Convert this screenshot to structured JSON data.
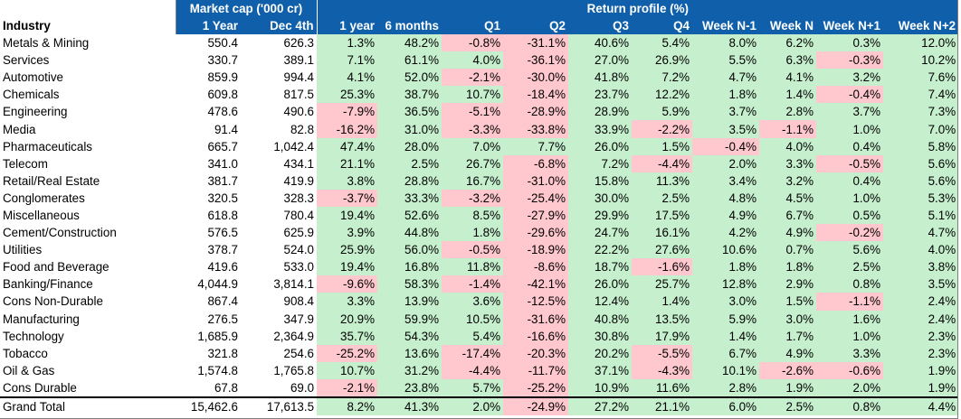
{
  "header": {
    "group_market_cap": "Market cap ('000 cr)",
    "group_return_profile": "Return profile (%)",
    "columns": [
      "Industry",
      "1 Year",
      "Dec 4th",
      "1 year",
      "6 months",
      "Q1",
      "Q2",
      "Q3",
      "Q4",
      "Week N-1",
      "Week N",
      "Week N+1",
      "Week N+2"
    ]
  },
  "colors": {
    "header_bg": "#0f5faa",
    "positive_bg": "#c6efce",
    "negative_bg": "#ffc7ce"
  },
  "rows": [
    [
      "Metals & Mining",
      "550.4",
      "626.3",
      "1.3%",
      "48.2%",
      "-0.8%",
      "-31.1%",
      "40.6%",
      "5.4%",
      "8.0%",
      "6.2%",
      "0.3%",
      "12.0%"
    ],
    [
      "Services",
      "330.7",
      "389.1",
      "7.1%",
      "61.1%",
      "4.0%",
      "-36.1%",
      "27.0%",
      "26.9%",
      "5.5%",
      "6.3%",
      "-0.3%",
      "10.2%"
    ],
    [
      "Automotive",
      "859.9",
      "994.4",
      "4.1%",
      "52.0%",
      "-2.1%",
      "-30.0%",
      "41.8%",
      "7.2%",
      "4.7%",
      "4.1%",
      "3.2%",
      "7.6%"
    ],
    [
      "Chemicals",
      "609.8",
      "817.5",
      "25.3%",
      "38.7%",
      "10.7%",
      "-18.4%",
      "23.7%",
      "12.2%",
      "1.8%",
      "1.4%",
      "-0.4%",
      "7.4%"
    ],
    [
      "Engineering",
      "478.6",
      "490.6",
      "-7.9%",
      "36.5%",
      "-5.1%",
      "-28.9%",
      "28.9%",
      "5.9%",
      "3.7%",
      "2.8%",
      "3.7%",
      "7.3%"
    ],
    [
      "Media",
      "91.4",
      "82.8",
      "-16.2%",
      "31.0%",
      "-3.3%",
      "-33.8%",
      "33.9%",
      "-2.2%",
      "3.5%",
      "-1.1%",
      "1.0%",
      "7.0%"
    ],
    [
      "Pharmaceuticals",
      "665.7",
      "1,042.4",
      "47.4%",
      "28.0%",
      "7.0%",
      "7.7%",
      "26.0%",
      "1.5%",
      "-0.4%",
      "4.0%",
      "0.4%",
      "5.8%"
    ],
    [
      "Telecom",
      "341.0",
      "434.1",
      "21.1%",
      "2.5%",
      "26.7%",
      "-6.8%",
      "7.2%",
      "-4.4%",
      "2.0%",
      "3.3%",
      "-0.5%",
      "5.6%"
    ],
    [
      "Retail/Real Estate",
      "381.7",
      "419.9",
      "3.8%",
      "28.8%",
      "16.7%",
      "-31.0%",
      "15.8%",
      "11.3%",
      "3.4%",
      "3.2%",
      "0.4%",
      "5.6%"
    ],
    [
      "Conglomerates",
      "320.5",
      "328.3",
      "-3.7%",
      "33.3%",
      "-3.2%",
      "-25.4%",
      "30.0%",
      "2.5%",
      "4.8%",
      "4.5%",
      "1.0%",
      "5.3%"
    ],
    [
      "Miscellaneous",
      "618.8",
      "780.4",
      "19.4%",
      "52.6%",
      "8.5%",
      "-27.9%",
      "29.9%",
      "17.5%",
      "4.9%",
      "6.7%",
      "0.5%",
      "5.1%"
    ],
    [
      "Cement/Construction",
      "576.5",
      "625.9",
      "3.9%",
      "44.8%",
      "1.8%",
      "-29.6%",
      "24.7%",
      "16.1%",
      "4.2%",
      "4.9%",
      "-0.2%",
      "4.7%"
    ],
    [
      "Utilities",
      "378.7",
      "524.0",
      "25.9%",
      "56.0%",
      "-0.5%",
      "-18.9%",
      "22.2%",
      "27.6%",
      "10.6%",
      "0.7%",
      "5.6%",
      "4.0%"
    ],
    [
      "Food and Beverage",
      "419.6",
      "533.0",
      "19.4%",
      "16.8%",
      "11.8%",
      "-8.6%",
      "18.7%",
      "-1.6%",
      "1.8%",
      "1.8%",
      "2.5%",
      "3.8%"
    ],
    [
      "Banking/Finance",
      "4,044.9",
      "3,814.1",
      "-9.6%",
      "58.3%",
      "-1.4%",
      "-42.1%",
      "26.0%",
      "25.7%",
      "12.8%",
      "2.9%",
      "0.8%",
      "3.5%"
    ],
    [
      "Cons Non-Durable",
      "867.4",
      "908.4",
      "3.3%",
      "13.9%",
      "3.6%",
      "-12.5%",
      "12.4%",
      "1.4%",
      "3.0%",
      "1.5%",
      "-1.1%",
      "2.4%"
    ],
    [
      "Manufacturing",
      "276.5",
      "347.9",
      "20.9%",
      "59.9%",
      "10.5%",
      "-31.6%",
      "40.8%",
      "13.5%",
      "5.9%",
      "3.0%",
      "1.6%",
      "2.4%"
    ],
    [
      "Technology",
      "1,685.9",
      "2,364.9",
      "35.7%",
      "54.3%",
      "5.4%",
      "-16.6%",
      "30.8%",
      "17.9%",
      "1.4%",
      "1.7%",
      "1.0%",
      "2.3%"
    ],
    [
      "Tobacco",
      "321.8",
      "254.6",
      "-25.2%",
      "13.6%",
      "-17.4%",
      "-20.3%",
      "20.2%",
      "-5.5%",
      "6.7%",
      "4.9%",
      "3.3%",
      "2.3%"
    ],
    [
      "Oil & Gas",
      "1,574.8",
      "1,765.8",
      "10.7%",
      "31.2%",
      "-4.4%",
      "-11.7%",
      "37.1%",
      "-4.3%",
      "10.1%",
      "-2.6%",
      "-0.6%",
      "1.9%"
    ],
    [
      "Cons Durable",
      "67.8",
      "69.0",
      "-2.1%",
      "23.8%",
      "5.7%",
      "-25.2%",
      "10.9%",
      "11.6%",
      "2.8%",
      "1.9%",
      "2.0%",
      "1.9%"
    ]
  ],
  "total": [
    "Grand Total",
    "15,462.6",
    "17,613.5",
    "8.2%",
    "41.3%",
    "2.0%",
    "-24.9%",
    "27.2%",
    "21.1%",
    "6.0%",
    "2.5%",
    "0.8%",
    "4.4%"
  ]
}
